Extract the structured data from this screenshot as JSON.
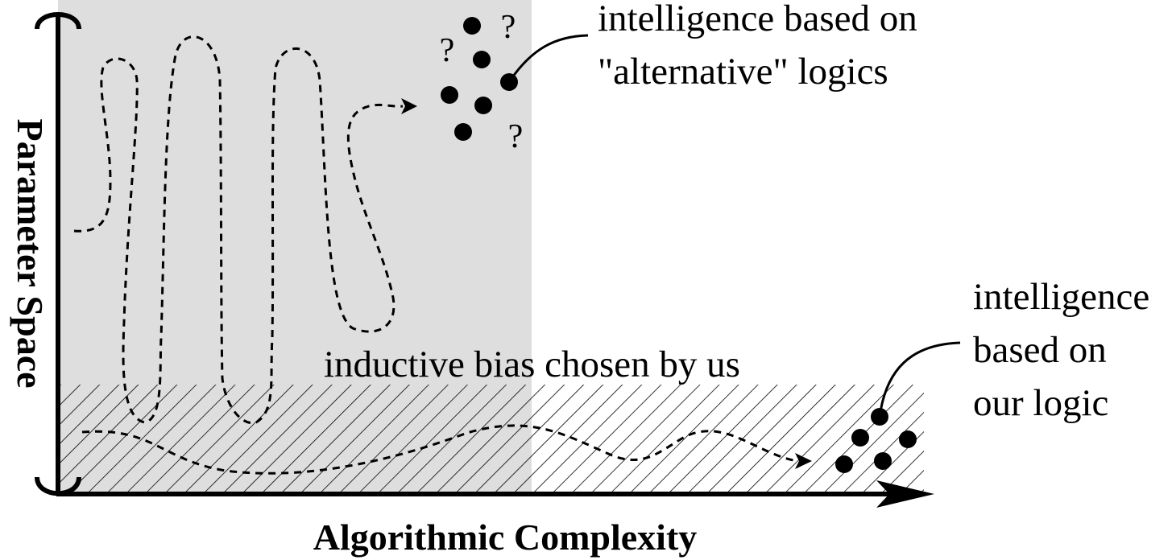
{
  "axes": {
    "x_label": "Algorithmic Complexity",
    "y_label": "Parameter Space"
  },
  "regions": {
    "explored_fill": "#dedede",
    "bias_band_label": "inductive bias chosen by us"
  },
  "clusters": {
    "alternative": {
      "label_line1": "intelligence based on",
      "label_line2": "\"alternative\" logics",
      "question_mark": "?"
    },
    "ours": {
      "label_line1": "intelligence",
      "label_line2": "based on",
      "label_line3": "our logic"
    }
  },
  "colors": {
    "ink": "#000000",
    "background": "#ffffff"
  }
}
